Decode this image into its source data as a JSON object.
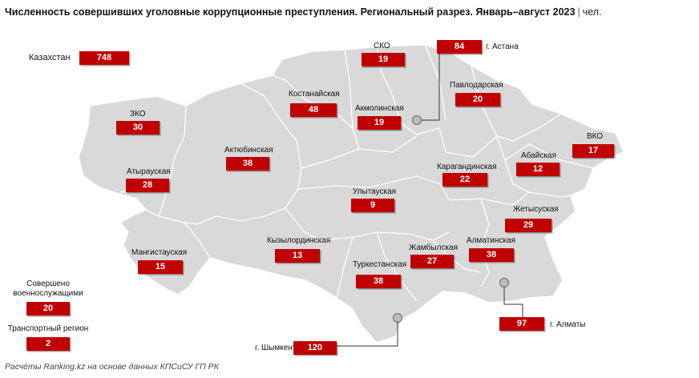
{
  "title": {
    "main": "Численность совершивших уголовные коррупционные преступления. Региональный разрез. Январь–август 2023",
    "separator": "|",
    "unit": "чел."
  },
  "source": "Расчёты Ranking.kz на основе данных КПСиСУ ГП РК",
  "accent_color": "#c00000",
  "map_fill_color": "#d9d9d9",
  "kazakhstan": {
    "label": "Казахстан",
    "value": "748"
  },
  "military": {
    "label_line1": "Совершено",
    "label_line2": "военнослужащими",
    "value": "20"
  },
  "transport": {
    "label": "Транспортный регион",
    "value": "2"
  },
  "regions": [
    {
      "id": "sko",
      "label": "СКО",
      "value": "19"
    },
    {
      "id": "astana",
      "label": "г. Астана",
      "value": "84"
    },
    {
      "id": "kostanay",
      "label": "Костанайская",
      "value": "48"
    },
    {
      "id": "akmola",
      "label": "Акмолинская",
      "value": "19"
    },
    {
      "id": "pavlodar",
      "label": "Павлодарская",
      "value": "20"
    },
    {
      "id": "zko",
      "label": "ЗКО",
      "value": "30"
    },
    {
      "id": "vko",
      "label": "ВКО",
      "value": "17"
    },
    {
      "id": "aktobe",
      "label": "Актюбинская",
      "value": "38"
    },
    {
      "id": "abai",
      "label": "Абайская",
      "value": "12"
    },
    {
      "id": "atyrau",
      "label": "Атырауская",
      "value": "28"
    },
    {
      "id": "karaganda",
      "label": "Карагандинская",
      "value": "22"
    },
    {
      "id": "ulytau",
      "label": "Улытауская",
      "value": "9"
    },
    {
      "id": "zhetysu",
      "label": "Жетысуская",
      "value": "29"
    },
    {
      "id": "mangystau",
      "label": "Мангистауская",
      "value": "15"
    },
    {
      "id": "kyzylorda",
      "label": "Кызылординская",
      "value": "13"
    },
    {
      "id": "zhambyl",
      "label": "Жамбылская",
      "value": "27"
    },
    {
      "id": "almaty_reg",
      "label": "Алматинская",
      "value": "38"
    },
    {
      "id": "turkestan",
      "label": "Туркестанская",
      "value": "38"
    },
    {
      "id": "almaty_city",
      "label": "г. Алматы",
      "value": "97"
    },
    {
      "id": "shymkent",
      "label": "г. Шымкент",
      "value": "120"
    }
  ]
}
